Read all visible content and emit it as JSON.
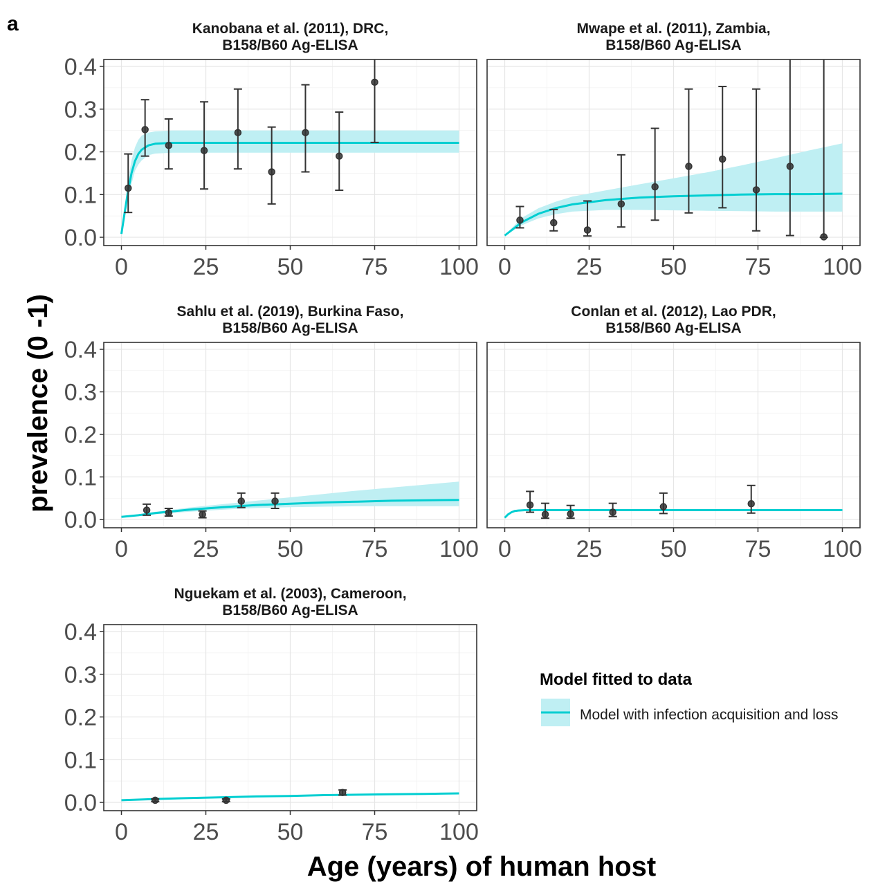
{
  "figure_label": "a",
  "x_axis_title": "Age (years) of human host",
  "y_axis_title": "prevalence (0 -1)",
  "legend": {
    "title": "Model fitted to data",
    "entry": "Model with infection acquisition and loss"
  },
  "colors": {
    "fit_line": "#00CED1",
    "ci_band": "#BFEFF3",
    "points": "#333333"
  },
  "chart_data": [
    {
      "type": "line",
      "title_line1": "Kanobana et al. (2011), DRC,",
      "title_line2": "B158/B60 Ag-ELISA",
      "xlim": [
        0,
        100
      ],
      "ylim": [
        0,
        0.42
      ],
      "x_ticks": [
        0,
        25,
        50,
        75,
        100
      ],
      "y_ticks": [
        "0.0",
        "0.1",
        "0.2",
        "0.3",
        "0.4"
      ],
      "grid": true,
      "observed": [
        {
          "x": 2,
          "y": 0.115,
          "lo": 0.058,
          "hi": 0.195
        },
        {
          "x": 7,
          "y": 0.252,
          "lo": 0.19,
          "hi": 0.322
        },
        {
          "x": 14,
          "y": 0.215,
          "lo": 0.16,
          "hi": 0.277
        },
        {
          "x": 24.5,
          "y": 0.203,
          "lo": 0.113,
          "hi": 0.317
        },
        {
          "x": 34.5,
          "y": 0.245,
          "lo": 0.16,
          "hi": 0.347
        },
        {
          "x": 44.5,
          "y": 0.153,
          "lo": 0.078,
          "hi": 0.258
        },
        {
          "x": 54.5,
          "y": 0.245,
          "lo": 0.153,
          "hi": 0.357
        },
        {
          "x": 64.5,
          "y": 0.19,
          "lo": 0.11,
          "hi": 0.293
        },
        {
          "x": 75,
          "y": 0.363,
          "lo": 0.222,
          "hi": 0.42
        }
      ],
      "fit": {
        "x": [
          0,
          1,
          2,
          3,
          4,
          5,
          6,
          8,
          10,
          15,
          20,
          100
        ],
        "y": [
          0.008,
          0.06,
          0.11,
          0.15,
          0.178,
          0.195,
          0.205,
          0.215,
          0.219,
          0.221,
          0.221,
          0.221
        ],
        "lower": [
          0.005,
          0.045,
          0.09,
          0.125,
          0.155,
          0.17,
          0.18,
          0.192,
          0.196,
          0.198,
          0.198,
          0.198
        ],
        "upper": [
          0.012,
          0.075,
          0.135,
          0.18,
          0.21,
          0.228,
          0.238,
          0.245,
          0.248,
          0.25,
          0.25,
          0.25
        ]
      }
    },
    {
      "type": "line",
      "title_line1": "Mwape et al. (2011), Zambia,",
      "title_line2": "B158/B60 Ag-ELISA",
      "xlim": [
        0,
        100
      ],
      "ylim": [
        0,
        0.42
      ],
      "x_ticks": [
        0,
        25,
        50,
        75,
        100
      ],
      "y_ticks": [],
      "grid": true,
      "observed": [
        {
          "x": 4.5,
          "y": 0.04,
          "lo": 0.022,
          "hi": 0.072
        },
        {
          "x": 14.5,
          "y": 0.034,
          "lo": 0.015,
          "hi": 0.065
        },
        {
          "x": 24.5,
          "y": 0.017,
          "lo": 0.003,
          "hi": 0.085
        },
        {
          "x": 34.5,
          "y": 0.078,
          "lo": 0.024,
          "hi": 0.193
        },
        {
          "x": 44.5,
          "y": 0.118,
          "lo": 0.04,
          "hi": 0.255
        },
        {
          "x": 54.5,
          "y": 0.166,
          "lo": 0.057,
          "hi": 0.347
        },
        {
          "x": 64.5,
          "y": 0.183,
          "lo": 0.069,
          "hi": 0.353
        },
        {
          "x": 74.5,
          "y": 0.111,
          "lo": 0.015,
          "hi": 0.347
        },
        {
          "x": 84.5,
          "y": 0.166,
          "lo": 0.004,
          "hi": 0.42
        },
        {
          "x": 94.5,
          "y": 0.001,
          "lo": 0.0,
          "hi": 0.42
        }
      ],
      "fit": {
        "x": [
          0,
          5,
          10,
          15,
          20,
          30,
          40,
          50,
          60,
          70,
          80,
          90,
          100
        ],
        "y": [
          0.004,
          0.035,
          0.055,
          0.068,
          0.077,
          0.087,
          0.093,
          0.096,
          0.098,
          0.1,
          0.101,
          0.101,
          0.102
        ],
        "lower": [
          0.003,
          0.028,
          0.044,
          0.054,
          0.06,
          0.064,
          0.064,
          0.063,
          0.062,
          0.061,
          0.06,
          0.06,
          0.06
        ],
        "upper": [
          0.005,
          0.045,
          0.068,
          0.083,
          0.095,
          0.11,
          0.124,
          0.138,
          0.152,
          0.168,
          0.185,
          0.203,
          0.22
        ]
      }
    },
    {
      "type": "line",
      "title_line1": "Sahlu et al. (2019), Burkina Faso,",
      "title_line2": "B158/B60 Ag-ELISA",
      "xlim": [
        0,
        100
      ],
      "ylim": [
        0,
        0.42
      ],
      "x_ticks": [
        0,
        25,
        50,
        75,
        100
      ],
      "y_ticks": [
        "0.0",
        "0.1",
        "0.2",
        "0.3",
        "0.4"
      ],
      "grid": true,
      "observed": [
        {
          "x": 7.5,
          "y": 0.022,
          "lo": 0.01,
          "hi": 0.036
        },
        {
          "x": 14,
          "y": 0.016,
          "lo": 0.008,
          "hi": 0.026
        },
        {
          "x": 24,
          "y": 0.012,
          "lo": 0.004,
          "hi": 0.02
        },
        {
          "x": 35.5,
          "y": 0.043,
          "lo": 0.028,
          "hi": 0.062
        },
        {
          "x": 45.5,
          "y": 0.043,
          "lo": 0.026,
          "hi": 0.062
        }
      ],
      "fit": {
        "x": [
          0,
          5,
          10,
          15,
          20,
          30,
          40,
          50,
          60,
          70,
          80,
          90,
          100
        ],
        "y": [
          0.006,
          0.01,
          0.015,
          0.019,
          0.023,
          0.029,
          0.034,
          0.037,
          0.04,
          0.042,
          0.044,
          0.045,
          0.046
        ],
        "lower": [
          0.005,
          0.008,
          0.012,
          0.015,
          0.018,
          0.023,
          0.027,
          0.029,
          0.03,
          0.031,
          0.031,
          0.031,
          0.031
        ],
        "upper": [
          0.007,
          0.012,
          0.018,
          0.023,
          0.028,
          0.036,
          0.044,
          0.052,
          0.06,
          0.068,
          0.075,
          0.082,
          0.089
        ]
      }
    },
    {
      "type": "line",
      "title_line1": "Conlan et al. (2012), Lao PDR,",
      "title_line2": "B158/B60 Ag-ELISA",
      "xlim": [
        0,
        100
      ],
      "ylim": [
        0,
        0.42
      ],
      "x_ticks": [
        0,
        25,
        50,
        75,
        100
      ],
      "y_ticks": [],
      "grid": true,
      "observed": [
        {
          "x": 7.5,
          "y": 0.034,
          "lo": 0.017,
          "hi": 0.066
        },
        {
          "x": 12,
          "y": 0.012,
          "lo": 0.003,
          "hi": 0.038
        },
        {
          "x": 19.5,
          "y": 0.013,
          "lo": 0.003,
          "hi": 0.033
        },
        {
          "x": 32,
          "y": 0.017,
          "lo": 0.007,
          "hi": 0.038
        },
        {
          "x": 47,
          "y": 0.03,
          "lo": 0.014,
          "hi": 0.062
        },
        {
          "x": 73,
          "y": 0.037,
          "lo": 0.015,
          "hi": 0.08
        }
      ],
      "fit": {
        "x": [
          0,
          1,
          2,
          3,
          4,
          6,
          10,
          100
        ],
        "y": [
          0.004,
          0.012,
          0.017,
          0.02,
          0.021,
          0.022,
          0.022,
          0.022
        ],
        "lower": [
          0.003,
          0.01,
          0.015,
          0.018,
          0.019,
          0.02,
          0.02,
          0.02
        ],
        "upper": [
          0.005,
          0.014,
          0.019,
          0.022,
          0.023,
          0.024,
          0.024,
          0.024
        ]
      }
    },
    {
      "type": "line",
      "title_line1": "Nguekam et al. (2003), Cameroon,",
      "title_line2": "B158/B60 Ag-ELISA",
      "xlim": [
        0,
        100
      ],
      "ylim": [
        0,
        0.42
      ],
      "x_ticks": [
        0,
        25,
        50,
        75,
        100
      ],
      "y_ticks": [
        "0.0",
        "0.1",
        "0.2",
        "0.3",
        "0.4"
      ],
      "grid": true,
      "observed": [
        {
          "x": 10,
          "y": 0.005,
          "lo": 0.002,
          "hi": 0.008
        },
        {
          "x": 31,
          "y": 0.005,
          "lo": 0.002,
          "hi": 0.008
        },
        {
          "x": 65.5,
          "y": 0.023,
          "lo": 0.017,
          "hi": 0.029
        }
      ],
      "fit": {
        "x": [
          0,
          10,
          20,
          30,
          40,
          50,
          60,
          70,
          80,
          90,
          100
        ],
        "y": [
          0.005,
          0.008,
          0.01,
          0.012,
          0.014,
          0.015,
          0.017,
          0.018,
          0.019,
          0.02,
          0.021
        ],
        "lower": [
          0.004,
          0.007,
          0.009,
          0.011,
          0.013,
          0.014,
          0.016,
          0.017,
          0.018,
          0.019,
          0.02
        ],
        "upper": [
          0.006,
          0.009,
          0.011,
          0.013,
          0.015,
          0.016,
          0.018,
          0.019,
          0.02,
          0.021,
          0.022
        ]
      }
    }
  ]
}
